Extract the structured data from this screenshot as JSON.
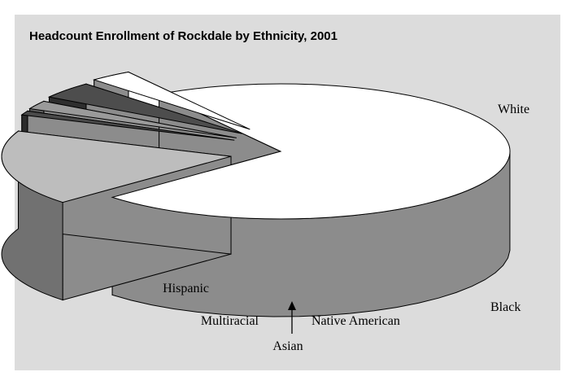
{
  "chart_data": {
    "type": "pie",
    "title": "Headcount Enrollment of Rockdale by Ethnicity, 2001",
    "slices": [
      {
        "name": "White",
        "value": 72.0,
        "color": "#ffffff",
        "exploded": false
      },
      {
        "name": "Black",
        "value": 18.0,
        "color": "#bdbdbd",
        "exploded": true
      },
      {
        "name": "Native American",
        "value": 1.0,
        "color": "#4a4a4a",
        "exploded": true
      },
      {
        "name": "Asian",
        "value": 2.0,
        "color": "#9a9a9a",
        "exploded": true
      },
      {
        "name": "Multiracial",
        "value": 4.0,
        "color": "#4d4d4d",
        "exploded": true
      },
      {
        "name": "Hispanic",
        "value": 3.0,
        "color": "#ffffff",
        "exploded": true
      }
    ],
    "three_d": true
  }
}
